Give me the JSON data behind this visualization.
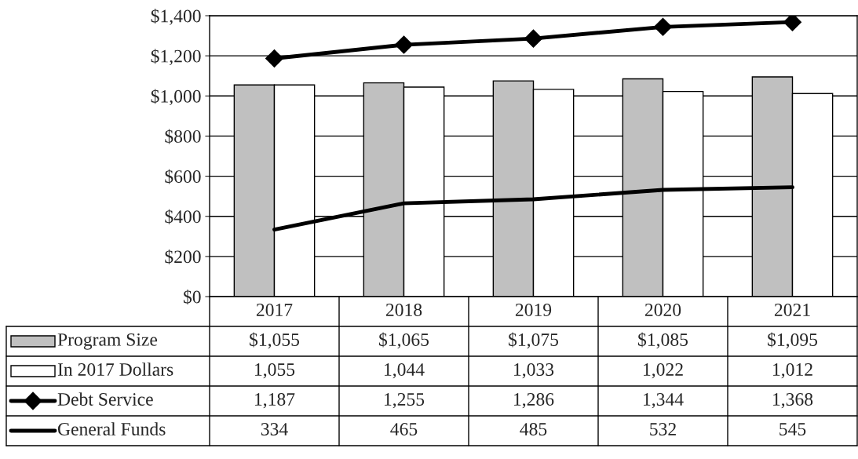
{
  "chart_data": {
    "type": "bar",
    "categories": [
      "2017",
      "2018",
      "2019",
      "2020",
      "2021"
    ],
    "series": [
      {
        "name": "Program Size",
        "color": "#c0c0c0",
        "values": [
          1055,
          1065,
          1075,
          1085,
          1095
        ],
        "value_labels": [
          "$1,055",
          "$1,065",
          "$1,075",
          "$1,085",
          "$1,095"
        ]
      },
      {
        "name": "In 2017 Dollars",
        "color": "#ffffff",
        "values": [
          1055,
          1044,
          1033,
          1022,
          1012
        ],
        "value_labels": [
          "1,055",
          "1,044",
          "1,033",
          "1,022",
          "1,012"
        ]
      },
      {
        "name": "Debt Service",
        "type": "line",
        "color": "#000000",
        "marker": "diamond",
        "values": [
          1187,
          1255,
          1286,
          1344,
          1368
        ],
        "value_labels": [
          "1,187",
          "1,255",
          "1,286",
          "1,344",
          "1,368"
        ]
      },
      {
        "name": "General Funds",
        "type": "line",
        "color": "#000000",
        "marker": "none",
        "values": [
          334,
          465,
          485,
          532,
          545
        ],
        "value_labels": [
          "334",
          "465",
          "485",
          "532",
          "545"
        ]
      }
    ],
    "ylim": [
      0,
      1400
    ],
    "yticks": [
      {
        "value": 0,
        "label": "$0"
      },
      {
        "value": 200,
        "label": "$200"
      },
      {
        "value": 400,
        "label": "$400"
      },
      {
        "value": 600,
        "label": "$600"
      },
      {
        "value": 800,
        "label": "$800"
      },
      {
        "value": 1000,
        "label": "$1,000"
      },
      {
        "value": 1200,
        "label": "$1,200"
      },
      {
        "value": 1400,
        "label": "$1,400"
      }
    ],
    "grid": "y",
    "legend": "bottom"
  }
}
